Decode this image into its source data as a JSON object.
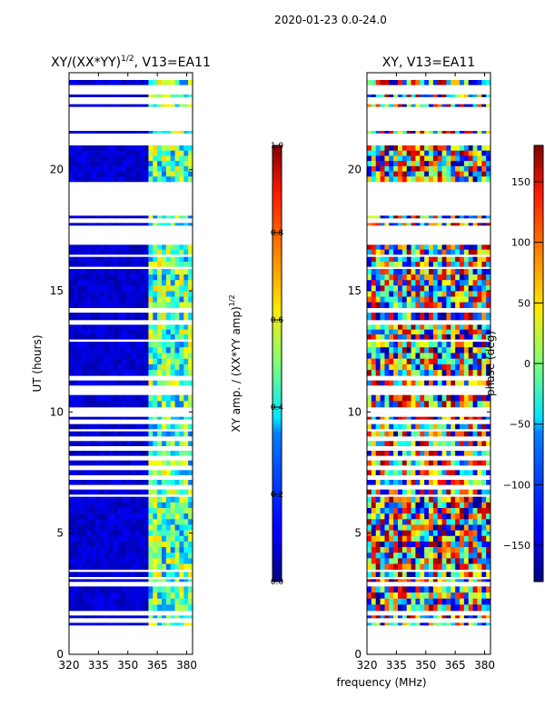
{
  "suptitle": "2020-01-23 0.0-24.0",
  "shared_xlabel": "frequency (MHz)",
  "chart_data": [
    {
      "type": "heatmap",
      "title": "XY/(XX*YY)^1/2, V13=EA11",
      "title_main": "XY/(XX*YY)",
      "title_exp": "1/2",
      "title_rest": ", V13=EA11",
      "xlabel": "",
      "ylabel": "UT (hours)",
      "xlim": [
        320,
        383
      ],
      "ylim": [
        0,
        24
      ],
      "xticks": [
        320,
        335,
        350,
        365,
        380
      ],
      "yticks": [
        0,
        5,
        10,
        15,
        20
      ],
      "colormap": "jet",
      "colorbar": {
        "label": "XY amp. / (XX*YY amp)^1/2",
        "label_main": "XY amp. / (XX*YY amp)",
        "label_exp": "1/2",
        "range": [
          0.0,
          1.0
        ],
        "ticks": [
          "0.0",
          "0.2",
          "0.4",
          "0.6",
          "0.8",
          "1.0"
        ]
      },
      "value_description": "normalized XY amplitude, mostly near 0.05-0.15 below ~360 MHz, elevated 0.3-0.7 between ~360 and 383 MHz",
      "low_region": {
        "freq_range": [
          320,
          360
        ],
        "typical_value": 0.08
      },
      "high_region": {
        "freq_range": [
          360,
          383
        ],
        "typical_value": 0.45
      },
      "data_blocks_ut": [
        [
          1.2,
          1.3
        ],
        [
          1.5,
          1.6
        ],
        [
          1.8,
          2.8
        ],
        [
          3.0,
          3.1
        ],
        [
          3.2,
          3.4
        ],
        [
          3.5,
          6.5
        ],
        [
          6.6,
          6.8
        ],
        [
          7.0,
          7.2
        ],
        [
          7.4,
          7.6
        ],
        [
          7.8,
          8.0
        ],
        [
          8.2,
          8.4
        ],
        [
          8.6,
          8.8
        ],
        [
          9.0,
          9.2
        ],
        [
          9.3,
          9.5
        ],
        [
          9.7,
          9.8
        ],
        [
          10.2,
          10.7
        ],
        [
          11.1,
          11.3
        ],
        [
          11.5,
          12.9
        ],
        [
          13.0,
          13.6
        ],
        [
          13.8,
          14.1
        ],
        [
          14.3,
          15.9
        ],
        [
          16.0,
          16.4
        ],
        [
          16.5,
          16.9
        ],
        [
          17.7,
          17.8
        ],
        [
          18.0,
          18.1
        ],
        [
          19.5,
          21.0
        ],
        [
          21.5,
          21.6
        ],
        [
          22.6,
          22.7
        ],
        [
          23.0,
          23.1
        ],
        [
          23.5,
          23.7
        ]
      ]
    },
    {
      "type": "heatmap",
      "title": "XY, V13=EA11",
      "xlabel": "frequency (MHz)",
      "ylabel": "",
      "xlim": [
        320,
        383
      ],
      "ylim": [
        0,
        24
      ],
      "xticks": [
        320,
        335,
        350,
        365,
        380
      ],
      "yticks": [
        0,
        5,
        10,
        15,
        20
      ],
      "colormap": "jet",
      "colorbar": {
        "label": "phase (deg)",
        "range": [
          -180,
          180
        ],
        "ticks": [
          "−150",
          "−100",
          "−50",
          "0",
          "50",
          "100",
          "150"
        ]
      },
      "value_description": "XY phase in degrees, noisy across full range -180 to 180",
      "data_blocks_ut": [
        [
          1.2,
          1.3
        ],
        [
          1.5,
          1.6
        ],
        [
          1.8,
          2.8
        ],
        [
          3.0,
          3.1
        ],
        [
          3.2,
          3.4
        ],
        [
          3.5,
          6.5
        ],
        [
          6.6,
          6.8
        ],
        [
          7.0,
          7.2
        ],
        [
          7.4,
          7.6
        ],
        [
          7.8,
          8.0
        ],
        [
          8.2,
          8.4
        ],
        [
          8.6,
          8.8
        ],
        [
          9.0,
          9.2
        ],
        [
          9.3,
          9.5
        ],
        [
          9.7,
          9.8
        ],
        [
          10.2,
          10.7
        ],
        [
          11.1,
          11.3
        ],
        [
          11.5,
          12.9
        ],
        [
          13.0,
          13.6
        ],
        [
          13.8,
          14.1
        ],
        [
          14.3,
          15.9
        ],
        [
          16.0,
          16.4
        ],
        [
          16.5,
          16.9
        ],
        [
          17.7,
          17.8
        ],
        [
          18.0,
          18.1
        ],
        [
          19.5,
          21.0
        ],
        [
          21.5,
          21.6
        ],
        [
          22.6,
          22.7
        ],
        [
          23.0,
          23.1
        ],
        [
          23.5,
          23.7
        ]
      ]
    }
  ]
}
